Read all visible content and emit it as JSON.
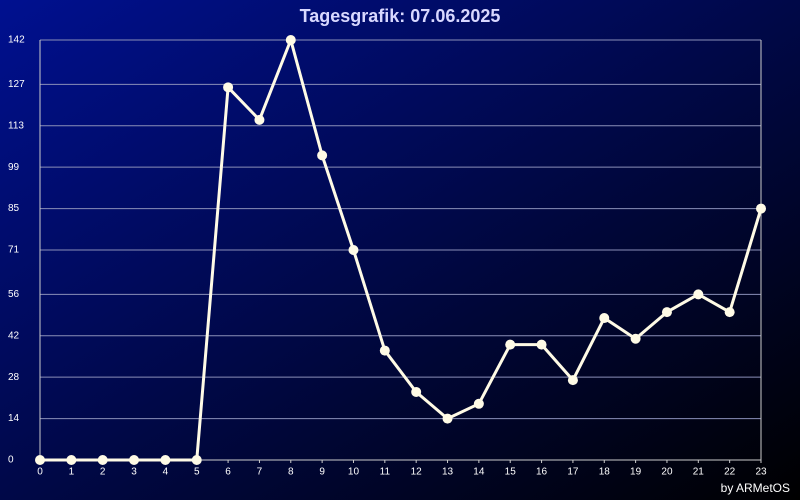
{
  "chart_data": {
    "type": "line",
    "title": "Tagesgrafik: 07.06.2025",
    "credit": "by ARMetOS",
    "x": [
      0,
      1,
      2,
      3,
      4,
      5,
      6,
      7,
      8,
      9,
      10,
      11,
      12,
      13,
      14,
      15,
      16,
      17,
      18,
      19,
      20,
      21,
      22,
      23
    ],
    "xlim": [
      0,
      23
    ],
    "xticks": [
      0,
      1,
      2,
      3,
      4,
      5,
      6,
      7,
      8,
      9,
      10,
      11,
      12,
      13,
      14,
      15,
      16,
      17,
      18,
      19,
      20,
      21,
      22,
      23
    ],
    "series": [
      {
        "color": "#fffbe6",
        "values": [
          0,
          0,
          0,
          0,
          0,
          0,
          126,
          115,
          142,
          103,
          71,
          37,
          23,
          14,
          19,
          39,
          39,
          27,
          48,
          41,
          50,
          56,
          50,
          85
        ]
      }
    ],
    "ylim": [
      0,
      142
    ],
    "yticks": [
      0,
      14,
      28,
      42,
      56,
      71,
      85,
      99,
      113,
      127,
      142
    ],
    "grid": true
  }
}
